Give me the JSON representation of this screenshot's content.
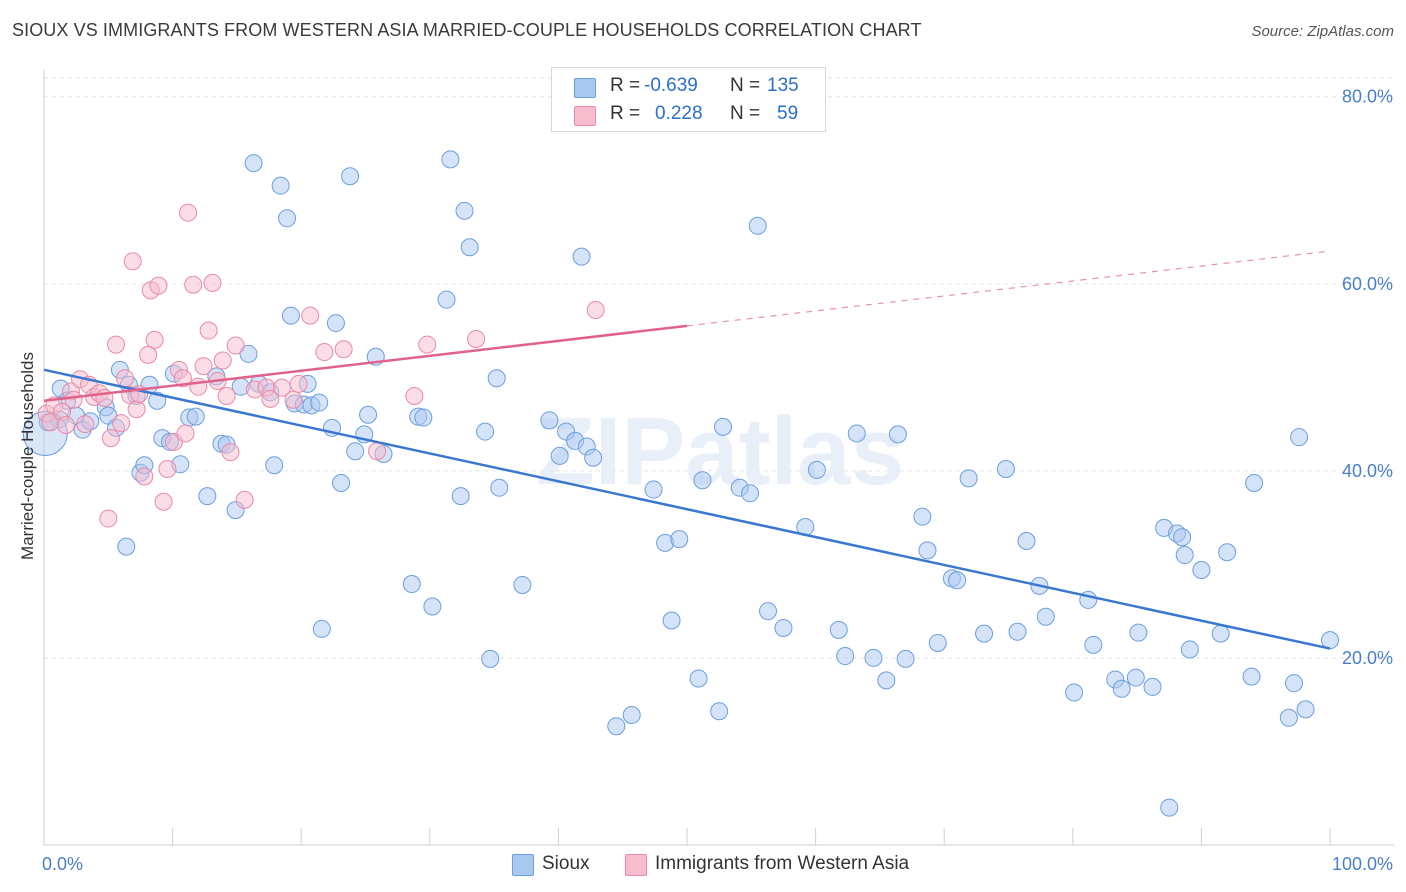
{
  "header": {
    "title": "SIOUX VS IMMIGRANTS FROM WESTERN ASIA MARRIED-COUPLE HOUSEHOLDS CORRELATION CHART",
    "source": "Source: ZipAtlas.com"
  },
  "watermark": "ZIPatlas",
  "legend_stats": [
    {
      "r_label": "R =",
      "r_value": "-0.639",
      "n_label": "N =",
      "n_value": "135",
      "color": "#a9c8f0",
      "border": "#6b9fe0"
    },
    {
      "r_label": "R =",
      "r_value": "0.228",
      "n_label": "N =",
      "n_value": "59",
      "color": "#f7bccd",
      "border": "#e88aa8"
    }
  ],
  "bottom_legend": [
    {
      "label": "Sioux",
      "color": "#a9c8f0",
      "border": "#6b9fe0"
    },
    {
      "label": "Immigrants from Western Asia",
      "color": "#f7bccd",
      "border": "#e88aa8"
    }
  ],
  "chart_data": {
    "type": "scatter",
    "title": "SIOUX VS IMMIGRANTS FROM WESTERN ASIA MARRIED-COUPLE HOUSEHOLDS CORRELATION CHART",
    "xlabel": "",
    "ylabel": "Married-couple Households",
    "xlim": [
      0,
      100
    ],
    "ylim": [
      0,
      82
    ],
    "x_tick_labels": [
      {
        "value": 0,
        "label": "0.0%"
      },
      {
        "value": 100,
        "label": "100.0%"
      }
    ],
    "y_tick_labels": [
      {
        "value": 20,
        "label": "20.0%"
      },
      {
        "value": 40,
        "label": "40.0%"
      },
      {
        "value": 60,
        "label": "60.0%"
      },
      {
        "value": 80,
        "label": "80.0%"
      }
    ],
    "grid": "horizontal dashed",
    "legend_position": "top-center",
    "series": [
      {
        "name": "Sioux",
        "color": "#a9c8f0",
        "stroke": "#6b9fe0",
        "line_color": "#3a78d0",
        "trend": {
          "x": [
            0,
            100
          ],
          "y": [
            50.8,
            21.0
          ],
          "dashed_from": null
        },
        "points": [
          [
            0.3,
            45.2
          ],
          [
            1.2,
            45.5
          ],
          [
            1.3,
            48.8
          ],
          [
            1.8,
            47.5
          ],
          [
            2.5,
            45.9
          ],
          [
            3.0,
            44.4
          ],
          [
            3.6,
            45.3
          ],
          [
            4.8,
            46.8
          ],
          [
            5.0,
            45.9
          ],
          [
            5.6,
            44.6
          ],
          [
            5.9,
            50.8
          ],
          [
            6.4,
            31.9
          ],
          [
            6.6,
            49.2
          ],
          [
            7.2,
            48.0
          ],
          [
            7.5,
            39.8
          ],
          [
            7.8,
            40.6
          ],
          [
            8.2,
            49.2
          ],
          [
            8.8,
            47.5
          ],
          [
            9.2,
            43.5
          ],
          [
            9.8,
            43.1
          ],
          [
            10.1,
            50.4
          ],
          [
            10.6,
            40.7
          ],
          [
            11.3,
            45.7
          ],
          [
            11.8,
            45.8
          ],
          [
            12.7,
            37.3
          ],
          [
            13.4,
            50.1
          ],
          [
            13.8,
            42.9
          ],
          [
            14.2,
            42.8
          ],
          [
            14.9,
            35.8
          ],
          [
            15.3,
            49.0
          ],
          [
            15.9,
            52.5
          ],
          [
            16.3,
            72.9
          ],
          [
            16.7,
            49.3
          ],
          [
            17.6,
            48.4
          ],
          [
            17.9,
            40.6
          ],
          [
            18.4,
            70.5
          ],
          [
            18.9,
            67.0
          ],
          [
            19.2,
            56.6
          ],
          [
            19.5,
            47.2
          ],
          [
            20.2,
            47.1
          ],
          [
            20.5,
            49.3
          ],
          [
            20.8,
            47.0
          ],
          [
            21.4,
            47.3
          ],
          [
            21.6,
            23.1
          ],
          [
            22.4,
            44.6
          ],
          [
            22.7,
            55.8
          ],
          [
            23.1,
            38.7
          ],
          [
            23.8,
            71.5
          ],
          [
            24.2,
            42.1
          ],
          [
            24.9,
            43.9
          ],
          [
            25.2,
            46.0
          ],
          [
            25.8,
            52.2
          ],
          [
            26.4,
            41.8
          ],
          [
            28.6,
            27.9
          ],
          [
            29.1,
            45.8
          ],
          [
            29.5,
            45.7
          ],
          [
            30.2,
            25.5
          ],
          [
            31.3,
            58.3
          ],
          [
            31.6,
            73.3
          ],
          [
            32.4,
            37.3
          ],
          [
            32.7,
            67.8
          ],
          [
            33.1,
            63.9
          ],
          [
            34.3,
            44.2
          ],
          [
            34.7,
            19.9
          ],
          [
            35.2,
            49.9
          ],
          [
            35.4,
            38.2
          ],
          [
            37.2,
            27.8
          ],
          [
            39.3,
            45.4
          ],
          [
            40.1,
            41.6
          ],
          [
            40.6,
            44.2
          ],
          [
            41.3,
            43.2
          ],
          [
            41.8,
            62.9
          ],
          [
            42.2,
            42.6
          ],
          [
            42.7,
            41.4
          ],
          [
            44.5,
            12.7
          ],
          [
            45.7,
            13.9
          ],
          [
            47.4,
            38.0
          ],
          [
            48.3,
            32.3
          ],
          [
            48.8,
            24.0
          ],
          [
            49.4,
            32.7
          ],
          [
            50.9,
            17.8
          ],
          [
            51.2,
            39.0
          ],
          [
            52.5,
            14.3
          ],
          [
            52.8,
            44.7
          ],
          [
            54.1,
            38.2
          ],
          [
            54.9,
            37.6
          ],
          [
            55.5,
            66.2
          ],
          [
            56.3,
            25.0
          ],
          [
            57.5,
            23.2
          ],
          [
            59.2,
            34.0
          ],
          [
            60.1,
            40.1
          ],
          [
            61.8,
            23.0
          ],
          [
            62.3,
            20.2
          ],
          [
            63.2,
            44.0
          ],
          [
            64.5,
            20.0
          ],
          [
            65.5,
            17.6
          ],
          [
            66.4,
            43.9
          ],
          [
            67.0,
            19.9
          ],
          [
            68.3,
            35.1
          ],
          [
            68.7,
            31.5
          ],
          [
            69.5,
            21.6
          ],
          [
            70.6,
            28.5
          ],
          [
            71.0,
            28.3
          ],
          [
            71.9,
            39.2
          ],
          [
            73.1,
            22.6
          ],
          [
            74.8,
            40.2
          ],
          [
            75.7,
            22.8
          ],
          [
            76.4,
            32.5
          ],
          [
            77.4,
            27.7
          ],
          [
            77.9,
            24.4
          ],
          [
            80.1,
            16.3
          ],
          [
            81.2,
            26.2
          ],
          [
            81.6,
            21.4
          ],
          [
            83.3,
            17.7
          ],
          [
            83.8,
            16.7
          ],
          [
            84.9,
            17.9
          ],
          [
            85.1,
            22.7
          ],
          [
            86.2,
            16.9
          ],
          [
            87.1,
            33.9
          ],
          [
            87.5,
            4.0
          ],
          [
            88.1,
            33.3
          ],
          [
            88.5,
            32.9
          ],
          [
            88.7,
            31.0
          ],
          [
            89.1,
            20.9
          ],
          [
            90.0,
            29.4
          ],
          [
            91.5,
            22.6
          ],
          [
            92.0,
            31.3
          ],
          [
            93.9,
            18.0
          ],
          [
            94.1,
            38.7
          ],
          [
            96.8,
            13.6
          ],
          [
            97.2,
            17.3
          ],
          [
            97.6,
            43.6
          ],
          [
            98.1,
            14.5
          ],
          [
            100.0,
            21.9
          ],
          [
            0.1,
            44.0
          ]
        ]
      },
      {
        "name": "Immigrants from Western Asia",
        "color": "#f7bccd",
        "stroke": "#e88aa8",
        "line_color": "#e0628c",
        "trend": {
          "x": [
            0,
            100
          ],
          "y": [
            47.5,
            63.5
          ],
          "dashed_from": 50
        },
        "points": [
          [
            0.2,
            46.1
          ],
          [
            0.5,
            45.2
          ],
          [
            0.8,
            47.0
          ],
          [
            1.4,
            46.3
          ],
          [
            1.7,
            44.9
          ],
          [
            2.1,
            48.5
          ],
          [
            2.3,
            47.6
          ],
          [
            2.8,
            49.8
          ],
          [
            3.2,
            45.0
          ],
          [
            3.5,
            49.2
          ],
          [
            3.9,
            47.9
          ],
          [
            4.3,
            48.3
          ],
          [
            4.7,
            47.8
          ],
          [
            5.0,
            34.9
          ],
          [
            5.2,
            43.5
          ],
          [
            5.6,
            53.5
          ],
          [
            6.0,
            45.1
          ],
          [
            6.3,
            49.9
          ],
          [
            6.7,
            48.1
          ],
          [
            6.9,
            62.4
          ],
          [
            7.2,
            46.6
          ],
          [
            7.4,
            48.2
          ],
          [
            7.8,
            39.4
          ],
          [
            8.1,
            52.4
          ],
          [
            8.3,
            59.3
          ],
          [
            8.6,
            54.0
          ],
          [
            8.9,
            59.8
          ],
          [
            9.3,
            36.7
          ],
          [
            9.6,
            40.2
          ],
          [
            10.1,
            43.1
          ],
          [
            10.5,
            50.8
          ],
          [
            10.8,
            49.9
          ],
          [
            11.0,
            44.0
          ],
          [
            11.2,
            67.6
          ],
          [
            11.6,
            59.9
          ],
          [
            12.0,
            49.0
          ],
          [
            12.4,
            51.2
          ],
          [
            12.8,
            55.0
          ],
          [
            13.1,
            60.1
          ],
          [
            13.5,
            49.6
          ],
          [
            13.9,
            51.8
          ],
          [
            14.2,
            48.0
          ],
          [
            14.5,
            42.0
          ],
          [
            14.9,
            53.4
          ],
          [
            15.6,
            36.9
          ],
          [
            16.4,
            48.7
          ],
          [
            17.3,
            48.9
          ],
          [
            17.6,
            47.7
          ],
          [
            18.5,
            48.9
          ],
          [
            19.4,
            47.6
          ],
          [
            19.8,
            49.3
          ],
          [
            20.7,
            56.6
          ],
          [
            21.8,
            52.7
          ],
          [
            23.3,
            53.0
          ],
          [
            25.9,
            42.1
          ],
          [
            28.8,
            48.0
          ],
          [
            29.8,
            53.5
          ],
          [
            33.6,
            54.1
          ],
          [
            42.9,
            57.2
          ]
        ]
      }
    ]
  }
}
